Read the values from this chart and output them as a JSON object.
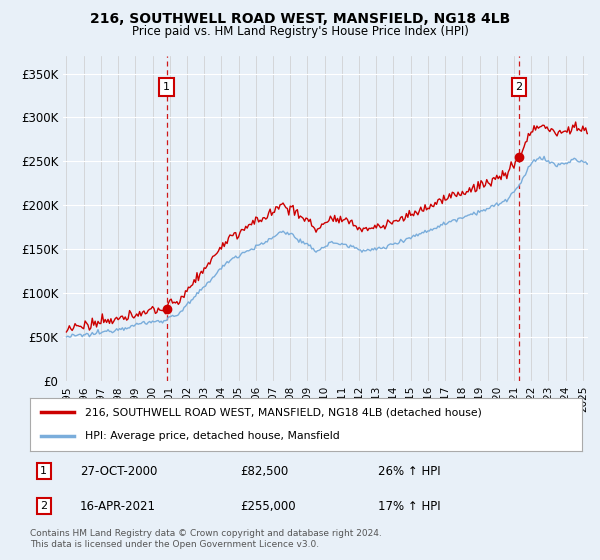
{
  "title": "216, SOUTHWELL ROAD WEST, MANSFIELD, NG18 4LB",
  "subtitle": "Price paid vs. HM Land Registry's House Price Index (HPI)",
  "background_color": "#e8f0f8",
  "ylabel_ticks": [
    "£0",
    "£50K",
    "£100K",
    "£150K",
    "£200K",
    "£250K",
    "£300K",
    "£350K"
  ],
  "ytick_vals": [
    0,
    50000,
    100000,
    150000,
    200000,
    250000,
    300000,
    350000
  ],
  "ylim": [
    0,
    370000
  ],
  "xlim_start": 1994.8,
  "xlim_end": 2025.3,
  "xtick_years": [
    1995,
    1996,
    1997,
    1998,
    1999,
    2000,
    2001,
    2002,
    2003,
    2004,
    2005,
    2006,
    2007,
    2008,
    2009,
    2010,
    2011,
    2012,
    2013,
    2014,
    2015,
    2016,
    2017,
    2018,
    2019,
    2020,
    2021,
    2022,
    2023,
    2024,
    2025
  ],
  "legend_line1": "216, SOUTHWELL ROAD WEST, MANSFIELD, NG18 4LB (detached house)",
  "legend_line2": "HPI: Average price, detached house, Mansfield",
  "legend_line1_color": "#cc0000",
  "legend_line2_color": "#7aaddb",
  "sale1_date": "27-OCT-2000",
  "sale1_price": "£82,500",
  "sale1_hpi": "26% ↑ HPI",
  "sale1_x": 2000.82,
  "sale1_y": 82500,
  "sale2_date": "16-APR-2021",
  "sale2_price": "£255,000",
  "sale2_hpi": "17% ↑ HPI",
  "sale2_x": 2021.29,
  "sale2_y": 255000,
  "footnote1": "Contains HM Land Registry data © Crown copyright and database right 2024.",
  "footnote2": "This data is licensed under the Open Government Licence v3.0.",
  "hpi_color": "#7aaddb",
  "sale_color": "#cc0000",
  "grid_color": "#ffffff",
  "vline_color": "#cc0000"
}
